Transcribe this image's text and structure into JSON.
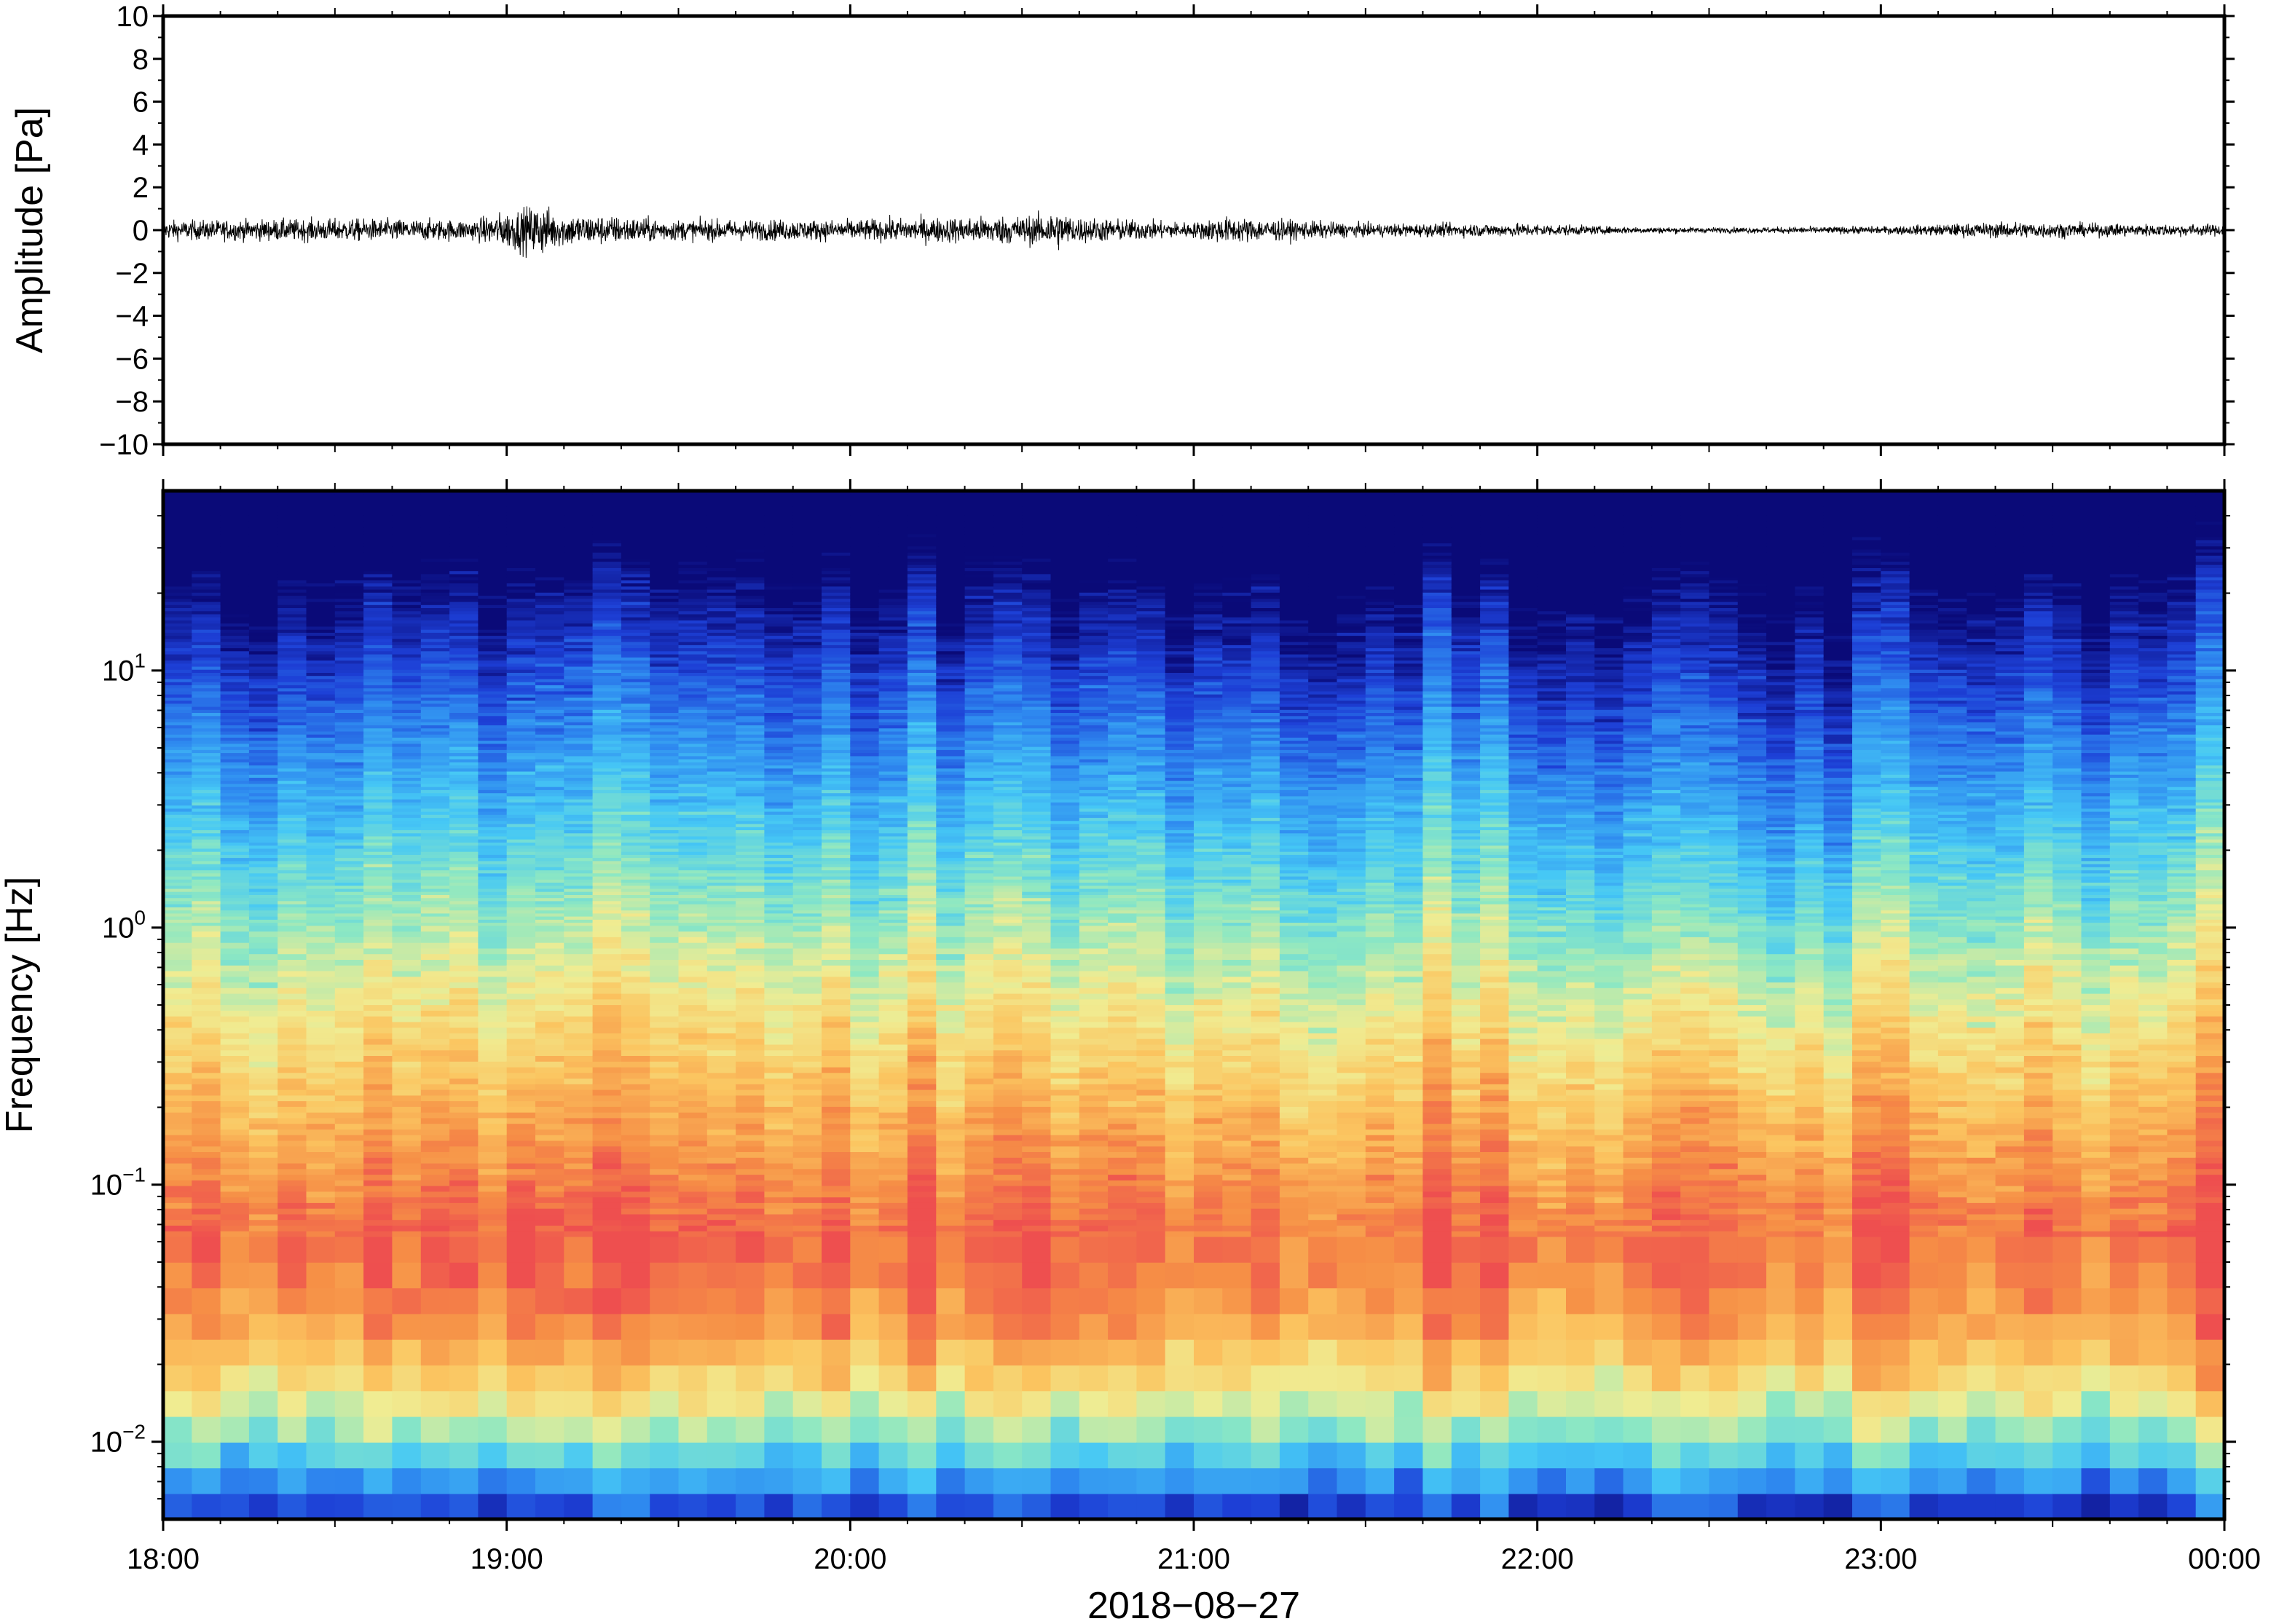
{
  "chart_data": [
    {
      "type": "line",
      "panel": "waveform",
      "ylabel": "Amplitude [Pa]",
      "ylim": [
        -10,
        10
      ],
      "yticks": [
        "10",
        "8",
        "6",
        "4",
        "2",
        "0",
        "−2",
        "−4",
        "−6",
        "−8",
        "−10"
      ],
      "yticks_values": [
        10,
        8,
        6,
        4,
        2,
        0,
        -2,
        -4,
        -6,
        -8,
        -10
      ],
      "xlim_hours": [
        18,
        24
      ],
      "series": [
        {
          "color": "#000000",
          "envelope_hours": [
            18.0,
            18.5,
            18.9,
            19.05,
            19.1,
            19.15,
            19.5,
            20.0,
            20.55,
            20.6,
            20.65,
            21.0,
            21.07,
            21.5,
            22.0,
            22.2,
            22.5,
            23.0,
            23.4,
            23.6,
            24.0
          ],
          "envelope_amplitude": [
            0.5,
            0.6,
            0.55,
            1.2,
            1.4,
            0.9,
            0.55,
            0.55,
            0.8,
            1.1,
            0.7,
            0.4,
            0.7,
            0.35,
            0.35,
            0.2,
            0.15,
            0.2,
            0.45,
            0.35,
            0.3
          ]
        }
      ],
      "grid": false
    },
    {
      "type": "heatmap",
      "panel": "spectrogram",
      "ylabel": "Frequency [Hz]",
      "yscale": "log",
      "ylim": [
        0.005,
        50
      ],
      "yticks": [
        {
          "base": "10",
          "exp": "1",
          "value": 10
        },
        {
          "base": "10",
          "exp": "0",
          "value": 1
        },
        {
          "base": "10",
          "exp": "−1",
          "value": 0.1
        },
        {
          "base": "10",
          "exp": "−2",
          "value": 0.01
        }
      ],
      "xlabel": "2018−08−27",
      "xticks": [
        "18:00",
        "19:00",
        "20:00",
        "21:00",
        "22:00",
        "23:00",
        "00:00"
      ],
      "xlim_hours": [
        18,
        24
      ],
      "colormap": [
        "#0a0a78",
        "#1d3fd6",
        "#2f8bf0",
        "#46c8f5",
        "#8ee8c2",
        "#f0ec92",
        "#fbc560",
        "#f68f46",
        "#ee4f4f"
      ],
      "energy_peak_frequency_hz": 0.07,
      "energy_events_hours": [
        19.05,
        20.6
      ],
      "grid": false
    }
  ]
}
